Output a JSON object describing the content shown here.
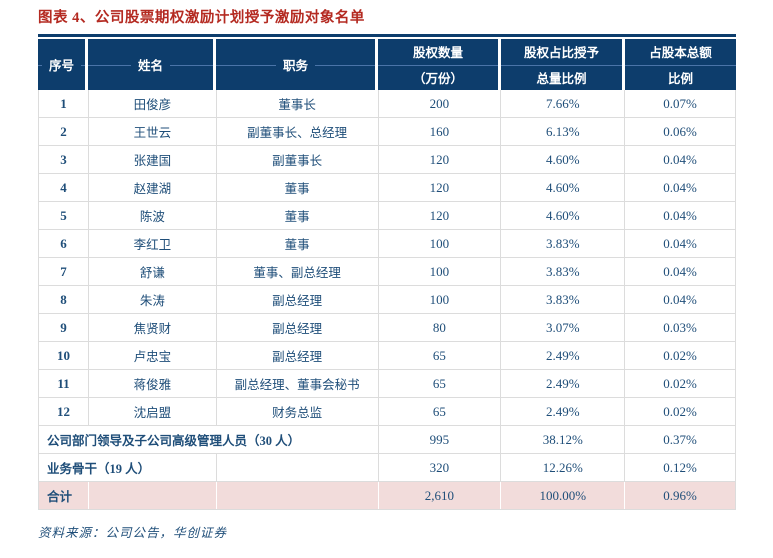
{
  "title": "图表 4、公司股票期权激励计划授予激励对象名单",
  "colors": {
    "header_bg": "#0d3d6c",
    "header_divider": "#4a74a8",
    "body_text": "#1f4e79",
    "title_red": "#b42a21",
    "total_row_bg": "#f2dcdb",
    "grid_line": "#dcdcdc"
  },
  "table": {
    "headers": [
      {
        "lines": [
          "序号"
        ]
      },
      {
        "lines": [
          "姓名"
        ]
      },
      {
        "lines": [
          "职务"
        ]
      },
      {
        "lines": [
          "股权数量",
          "（万份）"
        ]
      },
      {
        "lines": [
          "股权占比授予",
          "总量比例"
        ]
      },
      {
        "lines": [
          "占股本总额",
          "比例"
        ]
      }
    ],
    "rows": [
      {
        "no": "1",
        "name": "田俊彦",
        "position": "董事长",
        "quantity": "200",
        "grant_ratio": "7.66%",
        "capital_ratio": "0.07%"
      },
      {
        "no": "2",
        "name": "王世云",
        "position": "副董事长、总经理",
        "quantity": "160",
        "grant_ratio": "6.13%",
        "capital_ratio": "0.06%"
      },
      {
        "no": "3",
        "name": "张建国",
        "position": "副董事长",
        "quantity": "120",
        "grant_ratio": "4.60%",
        "capital_ratio": "0.04%"
      },
      {
        "no": "4",
        "name": "赵建湖",
        "position": "董事",
        "quantity": "120",
        "grant_ratio": "4.60%",
        "capital_ratio": "0.04%"
      },
      {
        "no": "5",
        "name": "陈波",
        "position": "董事",
        "quantity": "120",
        "grant_ratio": "4.60%",
        "capital_ratio": "0.04%"
      },
      {
        "no": "6",
        "name": "李红卫",
        "position": "董事",
        "quantity": "100",
        "grant_ratio": "3.83%",
        "capital_ratio": "0.04%"
      },
      {
        "no": "7",
        "name": "舒谦",
        "position": "董事、副总经理",
        "quantity": "100",
        "grant_ratio": "3.83%",
        "capital_ratio": "0.04%"
      },
      {
        "no": "8",
        "name": "朱涛",
        "position": "副总经理",
        "quantity": "100",
        "grant_ratio": "3.83%",
        "capital_ratio": "0.04%"
      },
      {
        "no": "9",
        "name": "焦贤财",
        "position": "副总经理",
        "quantity": "80",
        "grant_ratio": "3.07%",
        "capital_ratio": "0.03%"
      },
      {
        "no": "10",
        "name": "卢忠宝",
        "position": "副总经理",
        "quantity": "65",
        "grant_ratio": "2.49%",
        "capital_ratio": "0.02%"
      },
      {
        "no": "11",
        "name": "蒋俊雅",
        "position": "副总经理、董事会秘书",
        "quantity": "65",
        "grant_ratio": "2.49%",
        "capital_ratio": "0.02%"
      },
      {
        "no": "12",
        "name": "沈启盟",
        "position": "财务总监",
        "quantity": "65",
        "grant_ratio": "2.49%",
        "capital_ratio": "0.02%"
      }
    ],
    "group_rows": [
      {
        "label": "公司部门领导及子公司高级管理人员（30 人）",
        "merge_columns": 3,
        "quantity": "995",
        "grant_ratio": "38.12%",
        "capital_ratio": "0.37%"
      },
      {
        "label": "业务骨干（19 人）",
        "merge_columns": 2,
        "quantity": "320",
        "grant_ratio": "12.26%",
        "capital_ratio": "0.12%"
      }
    ],
    "total_row": {
      "label": "合计",
      "quantity": "2,610",
      "grant_ratio": "100.00%",
      "capital_ratio": "0.96%"
    }
  },
  "source": "资料来源：公司公告，华创证券"
}
